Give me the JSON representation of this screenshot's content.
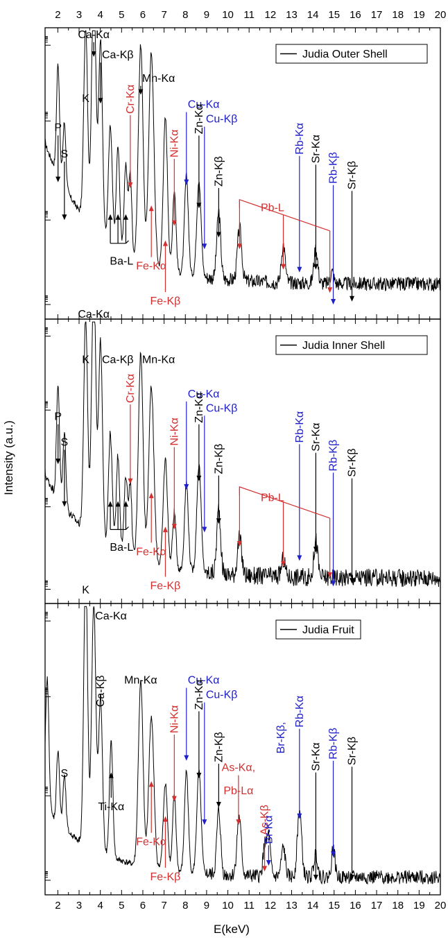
{
  "figure": {
    "ylabel": "Intensity (a.u.)",
    "xlabel": "E(keV)"
  },
  "chart_data": [
    {
      "type": "line",
      "legend": "Judia Outer Shell",
      "legend_placement": "top-right",
      "x_range": [
        1.4,
        20
      ],
      "x_ticks": [
        "2",
        "3",
        "4",
        "5",
        "6",
        "7",
        "8",
        "9",
        "10",
        "11",
        "12",
        "13",
        "14",
        "15",
        "16",
        "17",
        "18",
        "19",
        "20"
      ],
      "baseline": 0.12,
      "noise": 0.03,
      "peaks": [
        {
          "e": 1.2,
          "h": 0.25,
          "w": 0.08
        },
        {
          "e": 2.01,
          "h": 0.38,
          "w": 0.07
        },
        {
          "e": 2.31,
          "h": 0.22,
          "w": 0.07
        },
        {
          "e": 3.31,
          "h": 0.66,
          "w": 0.09
        },
        {
          "e": 3.69,
          "h": 0.86,
          "w": 0.1
        },
        {
          "e": 4.01,
          "h": 0.67,
          "w": 0.09
        },
        {
          "e": 4.47,
          "h": 0.4,
          "w": 0.09
        },
        {
          "e": 4.83,
          "h": 0.35,
          "w": 0.08
        },
        {
          "e": 5.2,
          "h": 0.3,
          "w": 0.08
        },
        {
          "e": 5.41,
          "h": 0.28,
          "w": 0.07
        },
        {
          "e": 5.9,
          "h": 0.74,
          "w": 0.11
        },
        {
          "e": 6.4,
          "h": 0.73,
          "w": 0.12
        },
        {
          "e": 7.06,
          "h": 0.52,
          "w": 0.1
        },
        {
          "e": 7.48,
          "h": 0.28,
          "w": 0.08
        },
        {
          "e": 8.05,
          "h": 0.34,
          "w": 0.09
        },
        {
          "e": 8.64,
          "h": 0.33,
          "w": 0.1
        },
        {
          "e": 9.57,
          "h": 0.23,
          "w": 0.09
        },
        {
          "e": 10.55,
          "h": 0.18,
          "w": 0.1
        },
        {
          "e": 12.61,
          "h": 0.13,
          "w": 0.09
        },
        {
          "e": 14.14,
          "h": 0.12,
          "w": 0.09
        },
        {
          "e": 14.9,
          "h": 0.04,
          "w": 0.08
        }
      ],
      "labels": [
        {
          "text": "P",
          "e": 2.01,
          "color": "#000000",
          "arrow": true,
          "label_y": 0.64,
          "tip_y": 0.47,
          "rotate": false
        },
        {
          "text": "S",
          "e": 2.31,
          "color": "#000000",
          "arrow": true,
          "label_y": 0.55,
          "tip_y": 0.34,
          "rotate": false
        },
        {
          "text": "K",
          "e": 3.31,
          "color": "#000000",
          "arrow": false,
          "label_y": 0.74,
          "rotate": false
        },
        {
          "text": "Ca-Kα",
          "e": 3.69,
          "color": "#000000",
          "arrow": true,
          "label_y": 0.96,
          "tip_y": 0.9,
          "rotate": false
        },
        {
          "text": "Ca-Kβ",
          "e": 4.01,
          "color": "#000000",
          "arrow": true,
          "label_y": 0.89,
          "tip_y": 0.74,
          "rotate": false,
          "anchor": "start"
        },
        {
          "text": "Mn-Kα",
          "e": 5.9,
          "color": "#000000",
          "arrow": true,
          "label_y": 0.81,
          "tip_y": 0.77,
          "rotate": false,
          "anchor": "start"
        },
        {
          "text": "Cr-Kα",
          "e": 5.41,
          "color": "#d32f2f",
          "arrow": true,
          "label_y": 0.7,
          "tip_y": 0.45,
          "rotate": true
        },
        {
          "text": "Ni-Kα",
          "e": 7.48,
          "color": "#d32f2f",
          "arrow": true,
          "label_y": 0.55,
          "tip_y": 0.32,
          "rotate": true
        },
        {
          "text": "Cu-Kα",
          "e": 8.05,
          "color": "#2020c8",
          "arrow": true,
          "label_y": 0.72,
          "tip_y": 0.46,
          "rotate": false,
          "anchor": "start"
        },
        {
          "text": "Zn-Kα",
          "e": 8.64,
          "color": "#000000",
          "arrow": true,
          "label_y": 0.63,
          "tip_y": 0.38,
          "rotate": true
        },
        {
          "text": "Cu-Kβ",
          "e": 8.9,
          "color": "#2020c8",
          "arrow": true,
          "label_y": 0.67,
          "tip_y": 0.24,
          "rotate": false,
          "anchor": "start"
        },
        {
          "text": "Zn-Kβ",
          "e": 9.57,
          "color": "#000000",
          "arrow": true,
          "label_y": 0.45,
          "tip_y": 0.28,
          "rotate": true
        },
        {
          "text": "Rb-Kα",
          "e": 13.37,
          "color": "#2020c8",
          "arrow": true,
          "label_y": 0.56,
          "tip_y": 0.16,
          "rotate": true
        },
        {
          "text": "Sr-Kα",
          "e": 14.14,
          "color": "#000000",
          "arrow": true,
          "label_y": 0.53,
          "tip_y": 0.17,
          "rotate": true
        },
        {
          "text": "Rb-Kβ",
          "e": 14.96,
          "color": "#2020c8",
          "arrow": true,
          "label_y": 0.46,
          "tip_y": 0.05,
          "rotate": true
        },
        {
          "text": "Sr-Kβ",
          "e": 15.84,
          "color": "#000000",
          "arrow": true,
          "label_y": 0.44,
          "tip_y": 0.06,
          "rotate": true
        }
      ],
      "ba_label": {
        "text": "Ba-L",
        "e": [
          4.47,
          4.83,
          5.2
        ],
        "label_x": 5.0,
        "label_y": 0.22,
        "tip_y": 0.36,
        "color": "#000000"
      },
      "fe_labels": [
        {
          "text": "Fe-Kα",
          "e": 6.4,
          "color": "#d32f2f",
          "label_y": 0.17,
          "tip_y": 0.39
        },
        {
          "text": "Fe-Kβ",
          "e": 7.06,
          "color": "#d32f2f",
          "label_y": 0.05,
          "tip_y": 0.27
        }
      ],
      "pb_group": {
        "text": "Pb-L",
        "color": "#d32f2f",
        "start": 10.55,
        "end": 14.8,
        "apex_y": 0.41,
        "lines": [
          10.55,
          12.61,
          14.8
        ],
        "tips": [
          0.24,
          0.17,
          0.09
        ],
        "label_x": 12.1,
        "label_y": 0.37
      }
    },
    {
      "type": "line",
      "legend": "Judia Inner Shell",
      "legend_placement": "top-right",
      "x_range": [
        1.4,
        20
      ],
      "x_ticks": [
        "2",
        "3",
        "4",
        "5",
        "6",
        "7",
        "8",
        "9",
        "10",
        "11",
        "12",
        "13",
        "14",
        "15",
        "16",
        "17",
        "18",
        "19",
        "20"
      ],
      "baseline": 0.09,
      "noise": 0.04,
      "peaks": [
        {
          "e": 1.2,
          "h": 0.22,
          "w": 0.08
        },
        {
          "e": 2.01,
          "h": 0.4,
          "w": 0.07
        },
        {
          "e": 2.31,
          "h": 0.26,
          "w": 0.07
        },
        {
          "e": 3.31,
          "h": 0.75,
          "w": 0.09
        },
        {
          "e": 3.69,
          "h": 0.92,
          "w": 0.1
        },
        {
          "e": 4.01,
          "h": 0.7,
          "w": 0.09
        },
        {
          "e": 4.47,
          "h": 0.4,
          "w": 0.09
        },
        {
          "e": 4.83,
          "h": 0.34,
          "w": 0.08
        },
        {
          "e": 5.2,
          "h": 0.28,
          "w": 0.08
        },
        {
          "e": 5.41,
          "h": 0.26,
          "w": 0.07
        },
        {
          "e": 5.9,
          "h": 0.73,
          "w": 0.11
        },
        {
          "e": 6.4,
          "h": 0.62,
          "w": 0.12
        },
        {
          "e": 7.06,
          "h": 0.38,
          "w": 0.1
        },
        {
          "e": 7.48,
          "h": 0.2,
          "w": 0.08
        },
        {
          "e": 8.05,
          "h": 0.31,
          "w": 0.09
        },
        {
          "e": 8.64,
          "h": 0.38,
          "w": 0.1
        },
        {
          "e": 9.57,
          "h": 0.23,
          "w": 0.09
        },
        {
          "e": 10.55,
          "h": 0.13,
          "w": 0.1
        },
        {
          "e": 12.61,
          "h": 0.06,
          "w": 0.09
        },
        {
          "e": 14.14,
          "h": 0.13,
          "w": 0.09
        }
      ],
      "labels": [
        {
          "text": "P",
          "e": 2.01,
          "color": "#000000",
          "arrow": true,
          "label_y": 0.64,
          "tip_y": 0.49,
          "rotate": false
        },
        {
          "text": "S",
          "e": 2.31,
          "color": "#000000",
          "arrow": true,
          "label_y": 0.55,
          "tip_y": 0.34,
          "rotate": false
        },
        {
          "text": "K",
          "e": 3.31,
          "color": "#000000",
          "arrow": false,
          "label_y": 0.84,
          "rotate": false
        },
        {
          "text": "Ca-Kα",
          "e": 3.69,
          "color": "#000000",
          "arrow": false,
          "label_y": 1.0,
          "rotate": false
        },
        {
          "text": "Ca-Kβ",
          "e": 4.01,
          "color": "#000000",
          "arrow": false,
          "label_y": 0.84,
          "rotate": false,
          "anchor": "start"
        },
        {
          "text": "Mn-Kα",
          "e": 5.9,
          "color": "#000000",
          "arrow": false,
          "label_y": 0.84,
          "rotate": false,
          "anchor": "start"
        },
        {
          "text": "Cr-Kα",
          "e": 5.41,
          "color": "#d32f2f",
          "arrow": true,
          "label_y": 0.7,
          "tip_y": 0.42,
          "rotate": true
        },
        {
          "text": "Ni-Kα",
          "e": 7.48,
          "color": "#d32f2f",
          "arrow": true,
          "label_y": 0.55,
          "tip_y": 0.26,
          "rotate": true
        },
        {
          "text": "Cu-Kα",
          "e": 8.05,
          "color": "#2020c8",
          "arrow": true,
          "label_y": 0.72,
          "tip_y": 0.4,
          "rotate": false,
          "anchor": "start"
        },
        {
          "text": "Zn-Kα",
          "e": 8.64,
          "color": "#000000",
          "arrow": true,
          "label_y": 0.63,
          "tip_y": 0.43,
          "rotate": true
        },
        {
          "text": "Cu-Kβ",
          "e": 8.9,
          "color": "#2020c8",
          "arrow": true,
          "label_y": 0.67,
          "tip_y": 0.25,
          "rotate": false,
          "anchor": "start"
        },
        {
          "text": "Zn-Kβ",
          "e": 9.57,
          "color": "#000000",
          "arrow": true,
          "label_y": 0.45,
          "tip_y": 0.28,
          "rotate": true
        },
        {
          "text": "Rb-Kα",
          "e": 13.37,
          "color": "#2020c8",
          "arrow": true,
          "label_y": 0.56,
          "tip_y": 0.15,
          "rotate": true
        },
        {
          "text": "Sr-Kα",
          "e": 14.14,
          "color": "#000000",
          "arrow": true,
          "label_y": 0.53,
          "tip_y": 0.18,
          "rotate": true
        },
        {
          "text": "Rb-Kβ",
          "e": 14.96,
          "color": "#2020c8",
          "arrow": true,
          "label_y": 0.46,
          "tip_y": 0.06,
          "rotate": true
        },
        {
          "text": "Sr-Kβ",
          "e": 15.84,
          "color": "#000000",
          "arrow": true,
          "label_y": 0.44,
          "tip_y": 0.07,
          "rotate": true
        }
      ],
      "ba_label": {
        "text": "Ba-L",
        "e": [
          4.47,
          4.83,
          5.2
        ],
        "label_x": 5.0,
        "label_y": 0.22,
        "tip_y": 0.36,
        "color": "#000000"
      },
      "fe_labels": [
        {
          "text": "Fe-Kα",
          "e": 6.4,
          "color": "#d32f2f",
          "label_y": 0.17,
          "tip_y": 0.39
        },
        {
          "text": "Fe-Kβ",
          "e": 7.06,
          "color": "#d32f2f",
          "label_y": 0.05,
          "tip_y": 0.27
        }
      ],
      "pb_group": {
        "text": "Pb-L",
        "color": "#d32f2f",
        "start": 10.55,
        "end": 14.8,
        "apex_y": 0.41,
        "lines": [
          10.55,
          12.61,
          14.8
        ],
        "tips": [
          0.2,
          0.13,
          0.09
        ],
        "label_x": 12.1,
        "label_y": 0.36
      }
    },
    {
      "type": "line",
      "legend": "Judia Fruit",
      "legend_placement": "top-center",
      "x_range": [
        1.4,
        20
      ],
      "x_ticks": [
        "2",
        "3",
        "4",
        "5",
        "6",
        "7",
        "8",
        "9",
        "10",
        "11",
        "12",
        "13",
        "14",
        "15",
        "16",
        "17",
        "18",
        "19",
        "20"
      ],
      "baseline": 0.06,
      "noise": 0.03,
      "peaks": [
        {
          "e": 1.5,
          "h": 0.45,
          "w": 0.08
        },
        {
          "e": 2.01,
          "h": 0.25,
          "w": 0.07
        },
        {
          "e": 2.31,
          "h": 0.18,
          "w": 0.07
        },
        {
          "e": 3.31,
          "h": 0.95,
          "w": 0.09
        },
        {
          "e": 3.69,
          "h": 0.84,
          "w": 0.1
        },
        {
          "e": 4.01,
          "h": 0.53,
          "w": 0.09
        },
        {
          "e": 4.51,
          "h": 0.4,
          "w": 0.08
        },
        {
          "e": 5.9,
          "h": 0.63,
          "w": 0.11
        },
        {
          "e": 6.4,
          "h": 0.52,
          "w": 0.12
        },
        {
          "e": 7.06,
          "h": 0.3,
          "w": 0.1
        },
        {
          "e": 7.48,
          "h": 0.26,
          "w": 0.08
        },
        {
          "e": 8.05,
          "h": 0.35,
          "w": 0.09
        },
        {
          "e": 8.64,
          "h": 0.35,
          "w": 0.1
        },
        {
          "e": 9.57,
          "h": 0.22,
          "w": 0.09
        },
        {
          "e": 10.53,
          "h": 0.2,
          "w": 0.1
        },
        {
          "e": 11.73,
          "h": 0.1,
          "w": 0.08
        },
        {
          "e": 11.92,
          "h": 0.14,
          "w": 0.08
        },
        {
          "e": 12.61,
          "h": 0.1,
          "w": 0.09
        },
        {
          "e": 13.37,
          "h": 0.23,
          "w": 0.1
        },
        {
          "e": 14.14,
          "h": 0.08,
          "w": 0.09
        },
        {
          "e": 14.96,
          "h": 0.1,
          "w": 0.08
        }
      ],
      "labels": [
        {
          "text": "S",
          "e": 2.31,
          "color": "#000000",
          "arrow": false,
          "label_y": 0.4,
          "rotate": false
        },
        {
          "text": "K",
          "e": 3.31,
          "color": "#000000",
          "arrow": false,
          "label_y": 1.03,
          "rotate": false
        },
        {
          "text": "Ca-Kα",
          "e": 3.69,
          "color": "#000000",
          "arrow": false,
          "label_y": 0.94,
          "rotate": false,
          "anchor": "start"
        },
        {
          "text": "Ca-Kβ",
          "e": 4.01,
          "color": "#000000",
          "arrow": false,
          "label_y": 0.64,
          "rotate": true
        },
        {
          "text": "Mn-Kα",
          "e": 5.9,
          "color": "#000000",
          "arrow": false,
          "label_y": 0.72,
          "rotate": false
        },
        {
          "text": "Ni-Kα",
          "e": 7.48,
          "color": "#d32f2f",
          "arrow": true,
          "label_y": 0.55,
          "tip_y": 0.32,
          "rotate": true
        },
        {
          "text": "Cu-Kα",
          "e": 8.05,
          "color": "#2020c8",
          "arrow": true,
          "label_y": 0.72,
          "tip_y": 0.46,
          "rotate": false,
          "anchor": "start"
        },
        {
          "text": "Zn-Kα",
          "e": 8.64,
          "color": "#000000",
          "arrow": true,
          "label_y": 0.63,
          "tip_y": 0.4,
          "rotate": true
        },
        {
          "text": "Cu-Kβ",
          "e": 8.9,
          "color": "#2020c8",
          "arrow": true,
          "label_y": 0.67,
          "tip_y": 0.24,
          "rotate": false,
          "anchor": "start"
        },
        {
          "text": "Zn-Kβ",
          "e": 9.57,
          "color": "#000000",
          "arrow": true,
          "label_y": 0.45,
          "tip_y": 0.3,
          "rotate": true
        },
        {
          "text": "As-Kα,",
          "e": 10.5,
          "color": "#d32f2f",
          "arrow": true,
          "label_y": 0.42,
          "tip_y": 0.24,
          "rotate": false
        },
        {
          "text": "Pb-Lα",
          "e": 10.5,
          "color": "#d32f2f",
          "arrow": false,
          "label_y": 0.34,
          "rotate": false
        },
        {
          "text": "As-Kβ",
          "e": 11.73,
          "color": "#d32f2f",
          "arrow": true,
          "label_y": 0.2,
          "tip_y": 0.08,
          "rotate": true
        },
        {
          "text": "Br-Kα",
          "e": 11.92,
          "color": "#2020c8",
          "arrow": true,
          "label_y": 0.17,
          "tip_y": 0.1,
          "rotate": true
        },
        {
          "text": "Br-Kβ,",
          "e": 12.5,
          "color": "#2020c8",
          "arrow": false,
          "label_y": 0.48,
          "rotate": true
        },
        {
          "text": "Rb-Kα",
          "e": 13.37,
          "color": "#2020c8",
          "arrow": true,
          "label_y": 0.57,
          "tip_y": 0.26,
          "rotate": true
        },
        {
          "text": "Sr-Kα",
          "e": 14.14,
          "color": "#000000",
          "arrow": true,
          "label_y": 0.42,
          "tip_y": 0.05,
          "rotate": true
        },
        {
          "text": "Rb-Kβ",
          "e": 14.96,
          "color": "#2020c8",
          "arrow": true,
          "label_y": 0.46,
          "tip_y": 0.13,
          "rotate": true
        },
        {
          "text": "Sr-Kβ",
          "e": 15.84,
          "color": "#000000",
          "arrow": true,
          "label_y": 0.44,
          "tip_y": 0.05,
          "rotate": true
        }
      ],
      "ti_label": {
        "text": "Ti-Kα",
        "e": 4.51,
        "color": "#000000",
        "label_y": 0.3,
        "tip_y": 0.42
      },
      "fe_labels": [
        {
          "text": "Fe-Kα",
          "e": 6.4,
          "color": "#d32f2f",
          "label_y": 0.17,
          "tip_y": 0.39
        },
        {
          "text": "Fe-Kβ",
          "e": 7.06,
          "color": "#d32f2f",
          "label_y": 0.05,
          "tip_y": 0.27
        }
      ]
    }
  ]
}
